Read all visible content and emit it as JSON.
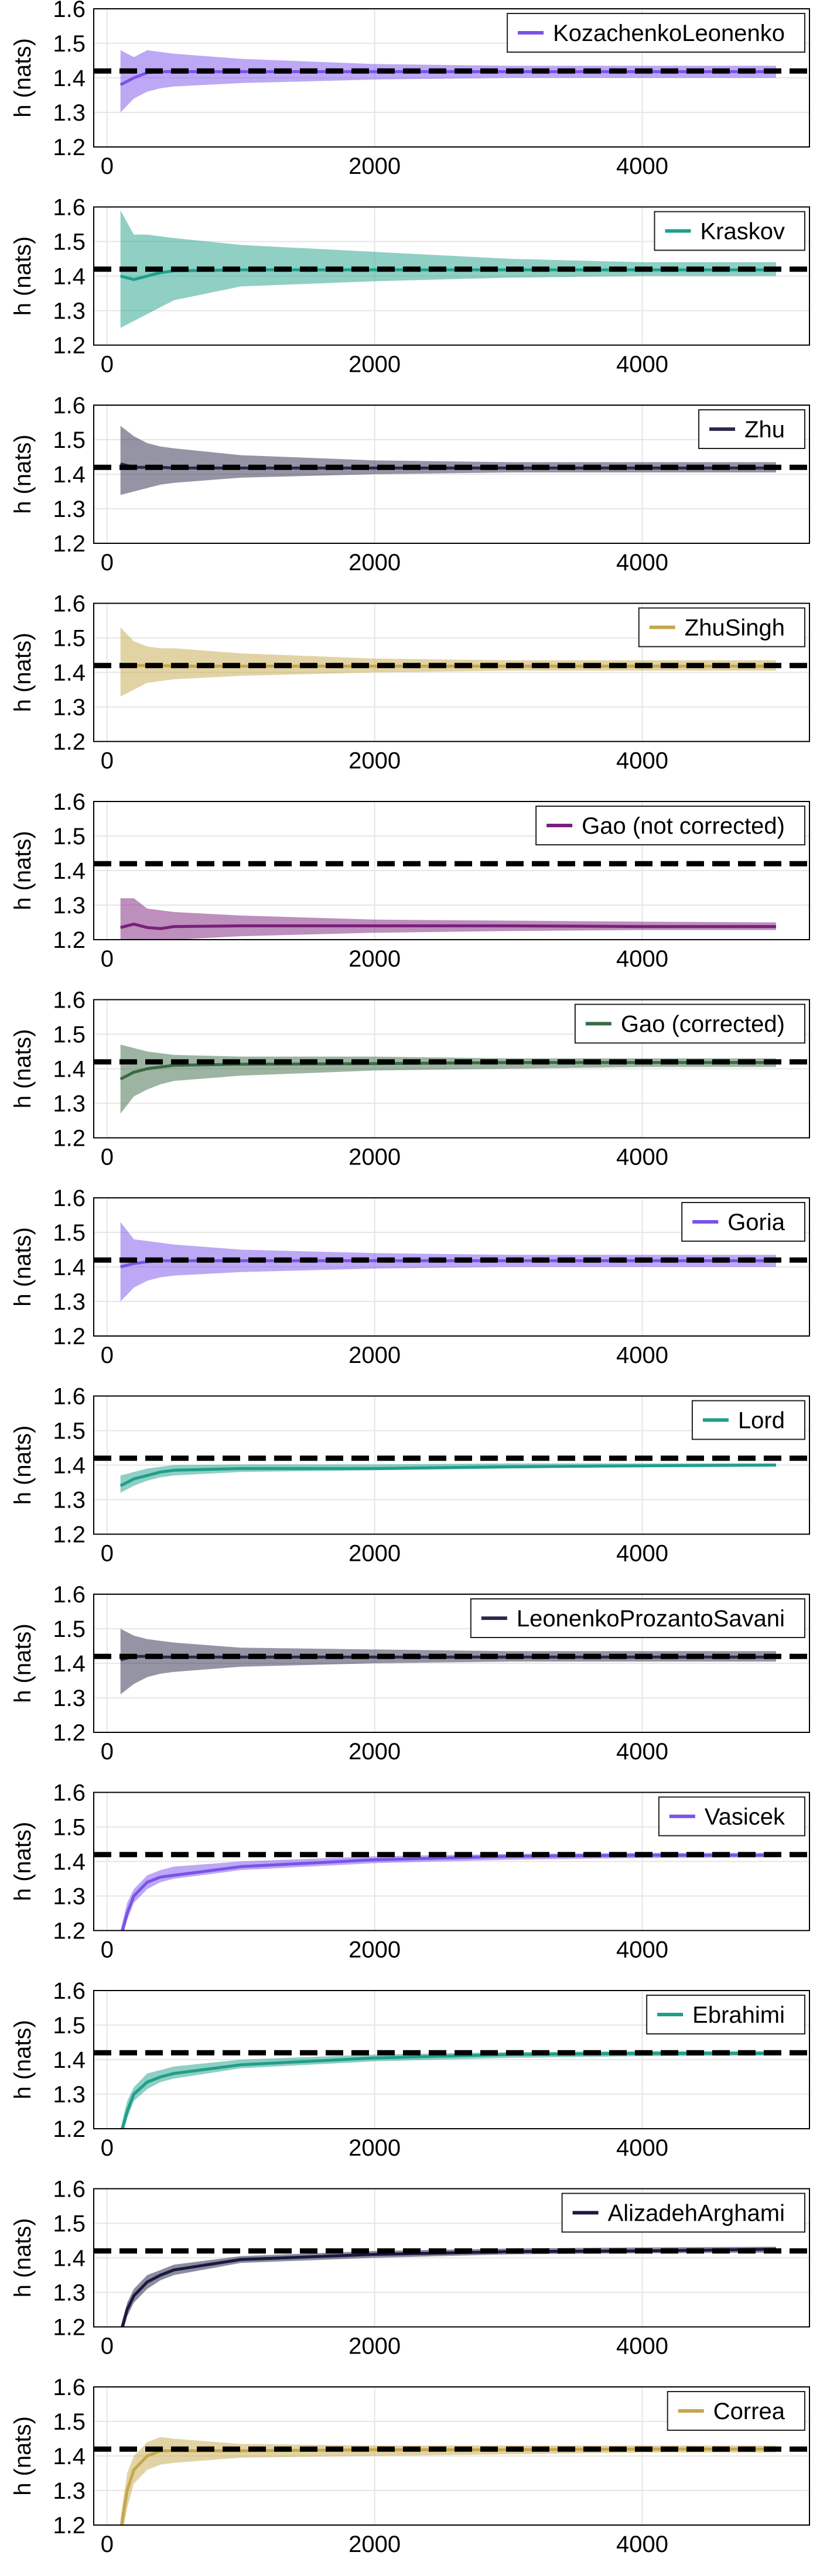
{
  "colors": {
    "grid": "#e6e6e6",
    "reference_line": "#000000",
    "legend_border": "#222222"
  },
  "chart_data": [
    {
      "type": "line",
      "series_name": "KozachenkoLeonenko",
      "color": "#7a52ea",
      "x": [
        100,
        200,
        300,
        400,
        500,
        1000,
        2000,
        3000,
        4000,
        5000
      ],
      "mean": [
        1.38,
        1.4,
        1.415,
        1.418,
        1.418,
        1.418,
        1.418,
        1.418,
        1.418,
        1.418
      ],
      "lower": [
        1.3,
        1.34,
        1.36,
        1.37,
        1.375,
        1.385,
        1.395,
        1.4,
        1.4,
        1.4
      ],
      "upper": [
        1.48,
        1.46,
        1.48,
        1.475,
        1.47,
        1.455,
        1.44,
        1.435,
        1.435,
        1.435
      ],
      "reference": 1.42,
      "ylabel": "h (nats)",
      "xticks": [
        0,
        2000,
        4000
      ],
      "yticks": [
        1.2,
        1.3,
        1.4,
        1.5,
        1.6
      ],
      "ylim": [
        1.2,
        1.6
      ],
      "xlim": [
        -100,
        5250
      ]
    },
    {
      "type": "line",
      "series_name": "Kraskov",
      "color": "#1f9f8a",
      "x": [
        100,
        200,
        300,
        400,
        500,
        1000,
        2000,
        3000,
        4000,
        5000
      ],
      "mean": [
        1.4,
        1.39,
        1.4,
        1.41,
        1.415,
        1.418,
        1.418,
        1.418,
        1.418,
        1.418
      ],
      "lower": [
        1.25,
        1.27,
        1.29,
        1.31,
        1.33,
        1.37,
        1.385,
        1.395,
        1.4,
        1.4
      ],
      "upper": [
        1.59,
        1.52,
        1.52,
        1.515,
        1.51,
        1.49,
        1.47,
        1.45,
        1.44,
        1.44
      ],
      "reference": 1.42,
      "ylabel": "h (nats)",
      "xticks": [
        0,
        2000,
        4000
      ],
      "yticks": [
        1.2,
        1.3,
        1.4,
        1.5,
        1.6
      ],
      "ylim": [
        1.2,
        1.6
      ],
      "xlim": [
        -100,
        5250
      ]
    },
    {
      "type": "line",
      "series_name": "Zhu",
      "color": "#2a2a4a",
      "x": [
        100,
        200,
        300,
        400,
        500,
        1000,
        2000,
        3000,
        4000,
        5000
      ],
      "mean": [
        1.43,
        1.42,
        1.42,
        1.42,
        1.418,
        1.418,
        1.418,
        1.418,
        1.418,
        1.418
      ],
      "lower": [
        1.34,
        1.35,
        1.36,
        1.37,
        1.375,
        1.39,
        1.4,
        1.405,
        1.405,
        1.405
      ],
      "upper": [
        1.54,
        1.51,
        1.49,
        1.48,
        1.475,
        1.455,
        1.44,
        1.435,
        1.435,
        1.435
      ],
      "reference": 1.42,
      "ylabel": "h (nats)",
      "xticks": [
        0,
        2000,
        4000
      ],
      "yticks": [
        1.2,
        1.3,
        1.4,
        1.5,
        1.6
      ],
      "ylim": [
        1.2,
        1.6
      ],
      "xlim": [
        -100,
        5250
      ]
    },
    {
      "type": "line",
      "series_name": "ZhuSingh",
      "color": "#c5a74a",
      "x": [
        100,
        200,
        300,
        400,
        500,
        1000,
        2000,
        3000,
        4000,
        5000
      ],
      "mean": [
        1.42,
        1.42,
        1.42,
        1.42,
        1.418,
        1.418,
        1.418,
        1.418,
        1.418,
        1.418
      ],
      "lower": [
        1.33,
        1.35,
        1.37,
        1.375,
        1.38,
        1.39,
        1.4,
        1.405,
        1.405,
        1.405
      ],
      "upper": [
        1.53,
        1.49,
        1.475,
        1.47,
        1.47,
        1.455,
        1.44,
        1.435,
        1.435,
        1.435
      ],
      "reference": 1.42,
      "ylabel": "h (nats)",
      "xticks": [
        0,
        2000,
        4000
      ],
      "yticks": [
        1.2,
        1.3,
        1.4,
        1.5,
        1.6
      ],
      "ylim": [
        1.2,
        1.6
      ],
      "xlim": [
        -100,
        5250
      ]
    },
    {
      "type": "line",
      "series_name": "Gao (not corrected)",
      "color": "#7a1f7a",
      "x": [
        100,
        200,
        300,
        400,
        500,
        1000,
        2000,
        3000,
        4000,
        5000
      ],
      "mean": [
        1.235,
        1.245,
        1.235,
        1.232,
        1.238,
        1.24,
        1.24,
        1.24,
        1.238,
        1.238
      ],
      "lower": [
        1.2,
        1.2,
        1.2,
        1.2,
        1.2,
        1.21,
        1.22,
        1.225,
        1.228,
        1.228
      ],
      "upper": [
        1.32,
        1.32,
        1.29,
        1.285,
        1.28,
        1.27,
        1.258,
        1.255,
        1.252,
        1.25
      ],
      "reference": 1.42,
      "ylabel": "h (nats)",
      "xticks": [
        0,
        2000,
        4000
      ],
      "yticks": [
        1.2,
        1.3,
        1.4,
        1.5,
        1.6
      ],
      "ylim": [
        1.2,
        1.6
      ],
      "xlim": [
        -100,
        5250
      ]
    },
    {
      "type": "line",
      "series_name": "Gao (corrected)",
      "color": "#3a6a44",
      "x": [
        100,
        200,
        300,
        400,
        500,
        1000,
        2000,
        3000,
        4000,
        5000
      ],
      "mean": [
        1.37,
        1.39,
        1.4,
        1.405,
        1.41,
        1.413,
        1.415,
        1.418,
        1.418,
        1.418
      ],
      "lower": [
        1.27,
        1.32,
        1.34,
        1.355,
        1.365,
        1.38,
        1.395,
        1.4,
        1.405,
        1.405
      ],
      "upper": [
        1.47,
        1.46,
        1.45,
        1.445,
        1.44,
        1.435,
        1.435,
        1.43,
        1.43,
        1.43
      ],
      "reference": 1.42,
      "ylabel": "h (nats)",
      "xticks": [
        0,
        2000,
        4000
      ],
      "yticks": [
        1.2,
        1.3,
        1.4,
        1.5,
        1.6
      ],
      "ylim": [
        1.2,
        1.6
      ],
      "xlim": [
        -100,
        5250
      ]
    },
    {
      "type": "line",
      "series_name": "Goria",
      "color": "#7a52ea",
      "x": [
        100,
        200,
        300,
        400,
        500,
        1000,
        2000,
        3000,
        4000,
        5000
      ],
      "mean": [
        1.4,
        1.41,
        1.415,
        1.418,
        1.418,
        1.418,
        1.418,
        1.418,
        1.418,
        1.418
      ],
      "lower": [
        1.3,
        1.34,
        1.36,
        1.37,
        1.375,
        1.385,
        1.395,
        1.4,
        1.4,
        1.4
      ],
      "upper": [
        1.53,
        1.48,
        1.475,
        1.47,
        1.465,
        1.45,
        1.44,
        1.435,
        1.435,
        1.435
      ],
      "reference": 1.42,
      "ylabel": "h (nats)",
      "xticks": [
        0,
        2000,
        4000
      ],
      "yticks": [
        1.2,
        1.3,
        1.4,
        1.5,
        1.6
      ],
      "ylim": [
        1.2,
        1.6
      ],
      "xlim": [
        -100,
        5250
      ]
    },
    {
      "type": "line",
      "series_name": "Lord",
      "color": "#1f9f8a",
      "x": [
        100,
        200,
        300,
        400,
        500,
        1000,
        2000,
        3000,
        4000,
        5000
      ],
      "mean": [
        1.34,
        1.36,
        1.37,
        1.38,
        1.385,
        1.39,
        1.39,
        1.395,
        1.398,
        1.4
      ],
      "lower": [
        1.32,
        1.34,
        1.355,
        1.365,
        1.37,
        1.38,
        1.385,
        1.39,
        1.395,
        1.397
      ],
      "upper": [
        1.37,
        1.38,
        1.39,
        1.395,
        1.4,
        1.402,
        1.402,
        1.405,
        1.405,
        1.405
      ],
      "reference": 1.42,
      "ylabel": "h (nats)",
      "xticks": [
        0,
        2000,
        4000
      ],
      "yticks": [
        1.2,
        1.3,
        1.4,
        1.5,
        1.6
      ],
      "ylim": [
        1.2,
        1.6
      ],
      "xlim": [
        -100,
        5250
      ]
    },
    {
      "type": "line",
      "series_name": "LeonenkoProzantoSavani",
      "color": "#2a2a4a",
      "x": [
        100,
        200,
        300,
        400,
        500,
        1000,
        2000,
        3000,
        4000,
        5000
      ],
      "mean": [
        1.41,
        1.42,
        1.42,
        1.418,
        1.418,
        1.418,
        1.418,
        1.418,
        1.418,
        1.418
      ],
      "lower": [
        1.31,
        1.34,
        1.36,
        1.37,
        1.375,
        1.39,
        1.4,
        1.405,
        1.405,
        1.405
      ],
      "upper": [
        1.5,
        1.48,
        1.47,
        1.465,
        1.46,
        1.445,
        1.44,
        1.435,
        1.435,
        1.435
      ],
      "reference": 1.42,
      "ylabel": "h (nats)",
      "xticks": [
        0,
        2000,
        4000
      ],
      "yticks": [
        1.2,
        1.3,
        1.4,
        1.5,
        1.6
      ],
      "ylim": [
        1.2,
        1.6
      ],
      "xlim": [
        -100,
        5250
      ]
    },
    {
      "type": "line",
      "series_name": "Vasicek",
      "color": "#7a52ea",
      "x": [
        100,
        150,
        200,
        300,
        400,
        500,
        1000,
        2000,
        3000,
        4000,
        5000
      ],
      "mean": [
        1.18,
        1.25,
        1.3,
        1.34,
        1.355,
        1.36,
        1.385,
        1.405,
        1.415,
        1.418,
        1.418
      ],
      "lower": [
        1.16,
        1.23,
        1.28,
        1.32,
        1.34,
        1.35,
        1.375,
        1.395,
        1.405,
        1.41,
        1.412
      ],
      "upper": [
        1.2,
        1.28,
        1.32,
        1.36,
        1.375,
        1.385,
        1.4,
        1.415,
        1.422,
        1.425,
        1.425
      ],
      "reference": 1.42,
      "ylabel": "h (nats)",
      "xticks": [
        0,
        2000,
        4000
      ],
      "yticks": [
        1.2,
        1.3,
        1.4,
        1.5,
        1.6
      ],
      "ylim": [
        1.2,
        1.6
      ],
      "xlim": [
        -100,
        5250
      ]
    },
    {
      "type": "line",
      "series_name": "Ebrahimi",
      "color": "#1f9f8a",
      "x": [
        100,
        150,
        200,
        300,
        400,
        500,
        1000,
        2000,
        3000,
        4000,
        5000
      ],
      "mean": [
        1.18,
        1.25,
        1.3,
        1.335,
        1.35,
        1.36,
        1.385,
        1.405,
        1.415,
        1.418,
        1.418
      ],
      "lower": [
        1.16,
        1.23,
        1.28,
        1.315,
        1.335,
        1.345,
        1.375,
        1.395,
        1.405,
        1.41,
        1.412
      ],
      "upper": [
        1.2,
        1.28,
        1.32,
        1.36,
        1.37,
        1.38,
        1.4,
        1.415,
        1.422,
        1.425,
        1.425
      ],
      "reference": 1.42,
      "ylabel": "h (nats)",
      "xticks": [
        0,
        2000,
        4000
      ],
      "yticks": [
        1.2,
        1.3,
        1.4,
        1.5,
        1.6
      ],
      "ylim": [
        1.2,
        1.6
      ],
      "xlim": [
        -100,
        5250
      ]
    },
    {
      "type": "line",
      "series_name": "AlizadehArghami",
      "color": "#1a1a40",
      "x": [
        100,
        150,
        200,
        300,
        400,
        500,
        1000,
        2000,
        3000,
        4000,
        5000
      ],
      "mean": [
        1.18,
        1.25,
        1.29,
        1.33,
        1.35,
        1.365,
        1.395,
        1.41,
        1.418,
        1.42,
        1.425
      ],
      "lower": [
        1.16,
        1.23,
        1.27,
        1.31,
        1.335,
        1.35,
        1.385,
        1.4,
        1.41,
        1.413,
        1.415
      ],
      "upper": [
        1.2,
        1.27,
        1.31,
        1.35,
        1.365,
        1.38,
        1.405,
        1.42,
        1.427,
        1.43,
        1.432
      ],
      "reference": 1.42,
      "ylabel": "h (nats)",
      "xticks": [
        0,
        2000,
        4000
      ],
      "yticks": [
        1.2,
        1.3,
        1.4,
        1.5,
        1.6
      ],
      "ylim": [
        1.2,
        1.6
      ],
      "xlim": [
        -100,
        5250
      ]
    },
    {
      "type": "line",
      "series_name": "Correa",
      "color": "#c5a74a",
      "x": [
        100,
        150,
        200,
        300,
        400,
        500,
        1000,
        2000,
        3000,
        4000,
        5000
      ],
      "mean": [
        1.18,
        1.3,
        1.36,
        1.4,
        1.415,
        1.415,
        1.415,
        1.418,
        1.418,
        1.42,
        1.42
      ],
      "lower": [
        1.14,
        1.25,
        1.32,
        1.36,
        1.375,
        1.38,
        1.395,
        1.4,
        1.405,
        1.41,
        1.41
      ],
      "upper": [
        1.22,
        1.35,
        1.4,
        1.44,
        1.455,
        1.45,
        1.435,
        1.43,
        1.43,
        1.43,
        1.43
      ],
      "reference": 1.42,
      "ylabel": "h (nats)",
      "xticks": [
        0,
        2000,
        4000
      ],
      "yticks": [
        1.2,
        1.3,
        1.4,
        1.5,
        1.6
      ],
      "ylim": [
        1.2,
        1.6
      ],
      "xlim": [
        -100,
        5250
      ]
    }
  ]
}
